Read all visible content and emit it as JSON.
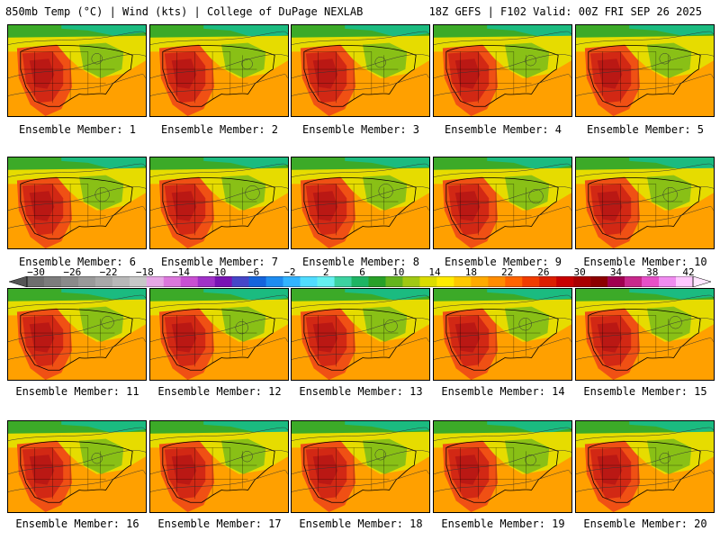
{
  "header": {
    "left_title": "850mb Temp (°C) | Wind (kts) | College of DuPage NEXLAB",
    "right_title": "18Z GEFS | F102 Valid: 00Z FRI SEP 26 2025"
  },
  "members": [
    {
      "caption": "Ensemble Member: 1"
    },
    {
      "caption": "Ensemble Member: 2"
    },
    {
      "caption": "Ensemble Member: 3"
    },
    {
      "caption": "Ensemble Member: 4"
    },
    {
      "caption": "Ensemble Member: 5"
    },
    {
      "caption": "Ensemble Member: 6"
    },
    {
      "caption": "Ensemble Member: 7"
    },
    {
      "caption": "Ensemble Member: 8"
    },
    {
      "caption": "Ensemble Member: 9"
    },
    {
      "caption": "Ensemble Member: 10"
    },
    {
      "caption": "Ensemble Member: 11"
    },
    {
      "caption": "Ensemble Member: 12"
    },
    {
      "caption": "Ensemble Member: 13"
    },
    {
      "caption": "Ensemble Member: 14"
    },
    {
      "caption": "Ensemble Member: 15"
    },
    {
      "caption": "Ensemble Member: 16"
    },
    {
      "caption": "Ensemble Member: 17"
    },
    {
      "caption": "Ensemble Member: 18"
    },
    {
      "caption": "Ensemble Member: 19"
    },
    {
      "caption": "Ensemble Member: 20"
    }
  ],
  "colorbar": {
    "labels": [
      "−30",
      "−26",
      "−22",
      "−18",
      "−14",
      "−10",
      "−6",
      "−2",
      "2",
      "6",
      "10",
      "14",
      "18",
      "22",
      "26",
      "30",
      "34",
      "38",
      "42"
    ],
    "colors": [
      "#6e6e6e",
      "#7c7c7c",
      "#8a8a8a",
      "#999999",
      "#a8a8a8",
      "#b8b8b8",
      "#c8c8c8",
      "#e6a8e6",
      "#dc78dc",
      "#c850d2",
      "#a032c8",
      "#7814b4",
      "#4646c8",
      "#1464dc",
      "#1e8cf0",
      "#32b4ff",
      "#50dcff",
      "#64f0f0",
      "#3cd2a0",
      "#1eb464",
      "#28a028",
      "#64b41e",
      "#a0c814",
      "#dcdc00",
      "#ffeb00",
      "#ffc800",
      "#ffaa00",
      "#ff8c00",
      "#ff6400",
      "#f03c00",
      "#dc1e00",
      "#c80000",
      "#aa0000",
      "#8c0000",
      "#a00050",
      "#c8288c",
      "#e650c8",
      "#f08cf0",
      "#ffc8ff"
    ]
  },
  "legend_colors": {
    "cold": "#00c8c8",
    "green": "#3caa28",
    "yellow": "#e6dc00",
    "orange": "#ffa000",
    "red_orange": "#f05014",
    "red": "#d22814",
    "dark_red": "#b41414"
  }
}
